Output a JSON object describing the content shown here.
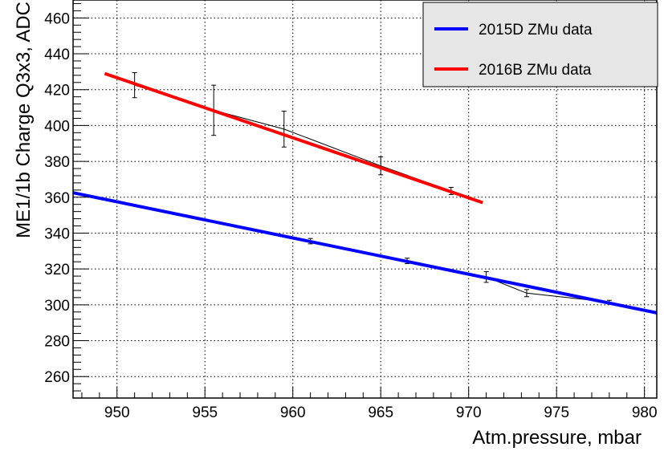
{
  "chart_data": {
    "type": "scatter",
    "title": "",
    "xlabel": "Atm.pressure, mbar",
    "ylabel": "ME1/1b Charge Q3x3, ADC",
    "xlim": [
      947.5,
      980.7
    ],
    "ylim": [
      248,
      470
    ],
    "xticks": [
      950,
      955,
      960,
      965,
      970,
      975,
      980
    ],
    "yticks": [
      260,
      280,
      300,
      320,
      340,
      360,
      380,
      400,
      420,
      440,
      460
    ],
    "grid": true,
    "legend_position": "top-right",
    "series": [
      {
        "name": "2015D ZMu data",
        "color": "#0000ff",
        "points": [
          {
            "x": 961.0,
            "y": 335.5,
            "err": 1.5
          },
          {
            "x": 966.5,
            "y": 324.5,
            "err": 1.5
          },
          {
            "x": 971.0,
            "y": 315.5,
            "err": 3.0
          },
          {
            "x": 973.3,
            "y": 306.5,
            "err": 2.0
          },
          {
            "x": 978.0,
            "y": 301.5,
            "err": 1.0
          }
        ],
        "fit": {
          "x": [
            947.5,
            980.7
          ],
          "y": [
            362.5,
            295.5
          ]
        }
      },
      {
        "name": "2016B ZMu data",
        "color": "#ff0000",
        "points": [
          {
            "x": 951.0,
            "y": 422.5,
            "err": 7.0
          },
          {
            "x": 955.5,
            "y": 408.5,
            "err": 14.0
          },
          {
            "x": 959.5,
            "y": 398.0,
            "err": 10.0
          },
          {
            "x": 965.0,
            "y": 377.5,
            "err": 5.0
          },
          {
            "x": 969.0,
            "y": 363.5,
            "err": 2.0
          }
        ],
        "fit": {
          "x": [
            949.3,
            970.8
          ],
          "y": [
            429.0,
            357.0
          ]
        }
      }
    ]
  }
}
